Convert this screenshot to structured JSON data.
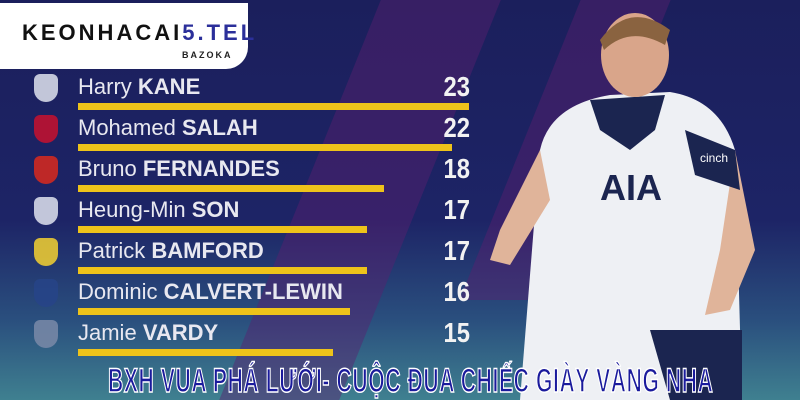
{
  "logo": {
    "brand_a": "KEONHACAI",
    "brand_b": "5.TEL",
    "sub": "BAZOKA"
  },
  "leaderboard": [
    {
      "first": "Harry",
      "last": "KANE",
      "goals": "23",
      "goals_value": 23,
      "club_color": "#dfe3ee"
    },
    {
      "first": "Mohamed",
      "last": "SALAH",
      "goals": "22",
      "goals_value": 22,
      "club_color": "#c8102e"
    },
    {
      "first": "Bruno",
      "last": "FERNANDES",
      "goals": "18",
      "goals_value": 18,
      "club_color": "#da291c"
    },
    {
      "first": "Heung-Min",
      "last": "SON",
      "goals": "17",
      "goals_value": 17,
      "club_color": "#dfe3ee"
    },
    {
      "first": "Patrick",
      "last": "BAMFORD",
      "goals": "17",
      "goals_value": 17,
      "club_color": "#f5d130"
    },
    {
      "first": "Dominic",
      "last": "CALVERT-LEWIN",
      "goals": "16",
      "goals_value": 16,
      "club_color": "#274488"
    },
    {
      "first": "Jamie",
      "last": "VARDY",
      "goals": "15",
      "goals_value": 15,
      "club_color": "#7a8aa8"
    }
  ],
  "title": "BXH VUA PHÁ LƯỚI- CUỘC ĐUA CHIẾC GIÀY VÀNG NHA",
  "shirt": {
    "sponsor": "AIA",
    "sleeve": "cinch"
  },
  "colors": {
    "bar": "#eec31a",
    "background": "#1b1f5c",
    "title": "#1a1a9c"
  }
}
